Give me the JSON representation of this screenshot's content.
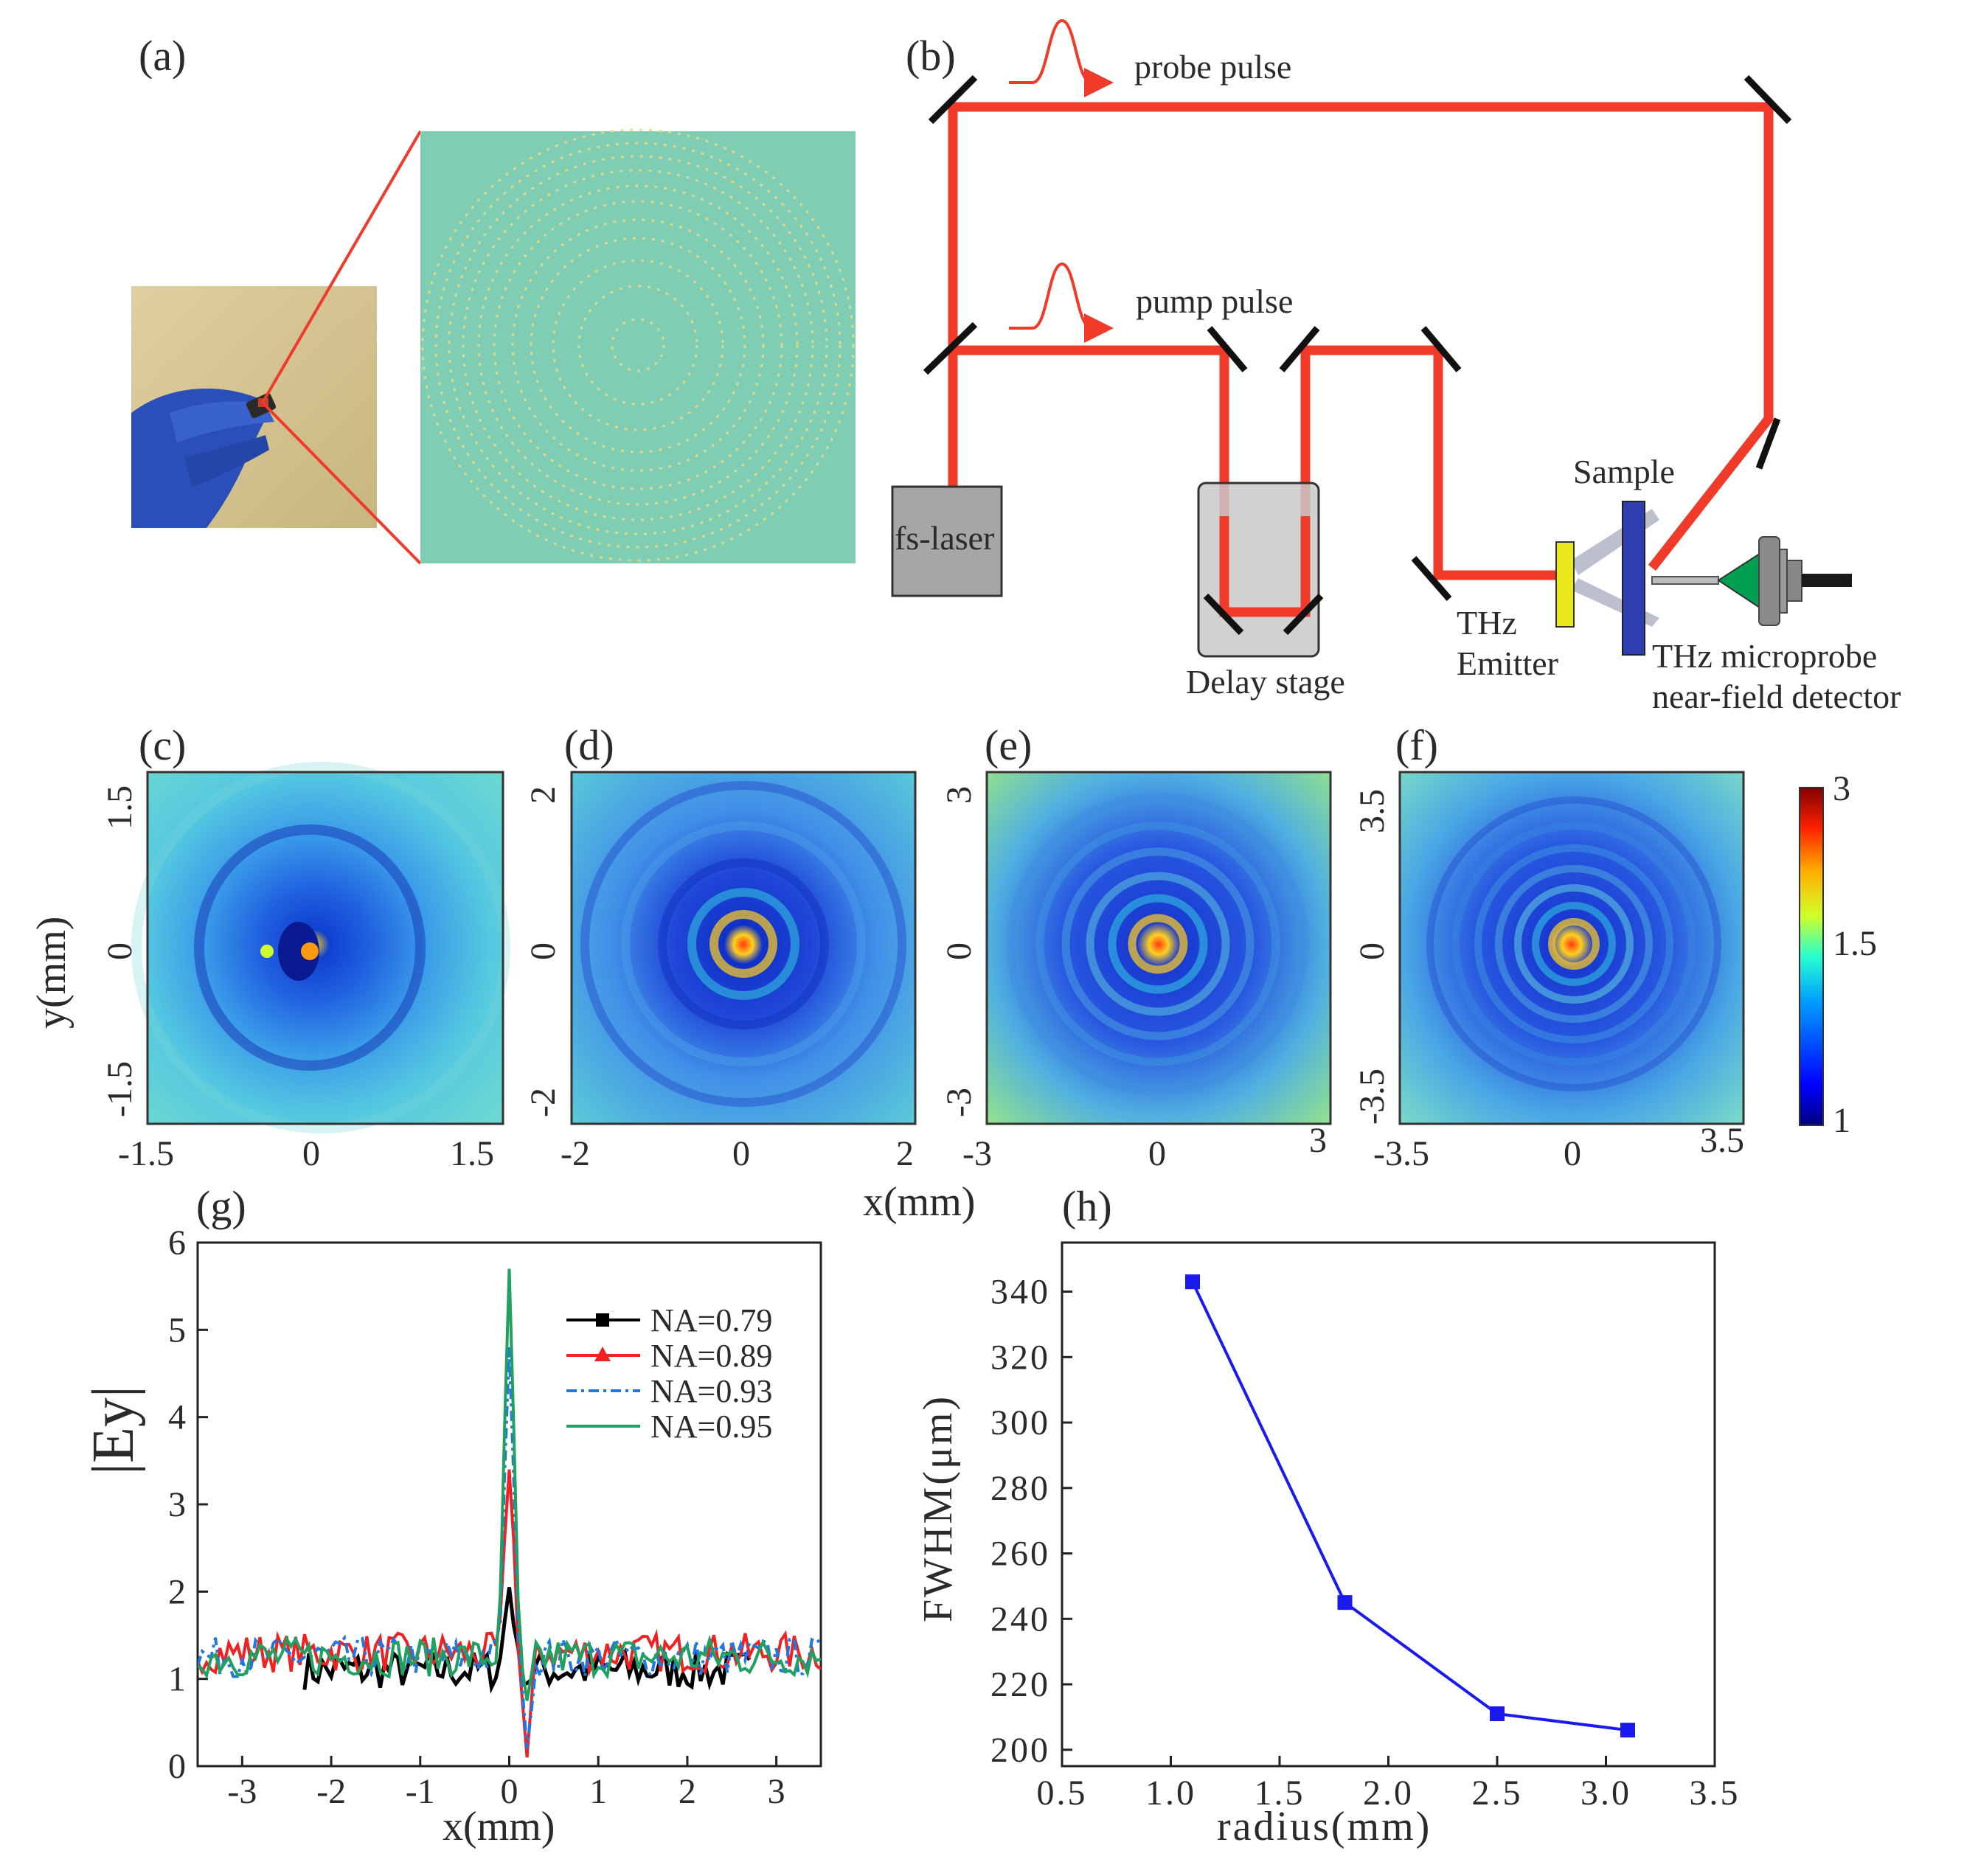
{
  "panel_labels": {
    "a": "(a)",
    "b": "(b)",
    "c": "(c)",
    "d": "(d)",
    "e": "(e)",
    "f": "(f)",
    "g": "(g)",
    "h": "(h)"
  },
  "setup": {
    "probe_pulse": "probe  pulse",
    "pump_pulse": "pump pulse",
    "fs_laser": "fs-laser",
    "delay_stage": "Delay stage",
    "sample": "Sample",
    "thz_emitter_1": "THz",
    "thz_emitter_2": "Emitter",
    "detector_1": "THz microprobe",
    "detector_2": "near-field detector"
  },
  "colors": {
    "beam": "#f03a2a",
    "sample": "#2e3db0",
    "emitter": "#e8e81a",
    "cone": "#00a050",
    "plate": "#7fcdb2"
  },
  "maps": {
    "ylabel": "y(mm)",
    "xlabel": "x(mm)",
    "panels": [
      {
        "xticks": [
          "-1.5",
          "0",
          "1.5"
        ],
        "yticks": [
          "1.5",
          "0",
          "-1.5"
        ]
      },
      {
        "xticks": [
          "-2",
          "0",
          "2"
        ],
        "yticks": [
          "2",
          "0",
          "-2"
        ]
      },
      {
        "xticks": [
          "-3",
          "0",
          "3"
        ],
        "yticks": [
          "3",
          "0",
          "-3"
        ]
      },
      {
        "xticks": [
          "-3.5",
          "0",
          "3.5"
        ],
        "yticks": [
          "3.5",
          "0",
          "-3.5"
        ]
      }
    ],
    "colorbar": {
      "max": "3",
      "mid": "1.5",
      "min": "1"
    }
  },
  "chart_data": [
    {
      "type": "line",
      "panel": "(g)",
      "xlabel": "x(mm)",
      "ylabel": "|Ey|",
      "xlim": [
        -3.5,
        3.5
      ],
      "ylim": [
        0,
        6
      ],
      "xticks": [
        "-3",
        "-2",
        "-1",
        "0",
        "1",
        "2",
        "3"
      ],
      "yticks": [
        "0",
        "1",
        "2",
        "3",
        "4",
        "5",
        "6"
      ],
      "series": [
        {
          "name": "NA=0.79",
          "color": "#000000",
          "peak": 2.05,
          "dip": 0.95,
          "base": 1.1,
          "range": [
            -2.3,
            2.7
          ]
        },
        {
          "name": "NA=0.89",
          "color": "#ee2222",
          "peak": 3.4,
          "dip": 0.1,
          "base": 1.3,
          "range": [
            -3.5,
            3.5
          ]
        },
        {
          "name": "NA=0.93",
          "color": "#2277dd",
          "peak": 4.8,
          "dip": 0.2,
          "base": 1.25,
          "range": [
            -3.5,
            3.5
          ]
        },
        {
          "name": "NA=0.95",
          "color": "#22a060",
          "peak": 5.7,
          "dip": 0.75,
          "base": 1.25,
          "range": [
            -3.5,
            3.5
          ]
        }
      ]
    },
    {
      "type": "line",
      "panel": "(h)",
      "xlabel": "radius(mm)",
      "ylabel": "FWHM(μm)",
      "x": [
        1.1,
        1.8,
        2.5,
        3.1
      ],
      "y": [
        343,
        245,
        211,
        206
      ],
      "xlim": [
        0.5,
        3.5
      ],
      "ylim": [
        195,
        355
      ],
      "xticks": [
        "0.5",
        "1.0",
        "1.5",
        "2.0",
        "2.5",
        "3.0",
        "3.5"
      ],
      "yticks": [
        "200",
        "220",
        "240",
        "260",
        "280",
        "300",
        "320",
        "340"
      ],
      "color": "#1a1aee"
    }
  ]
}
